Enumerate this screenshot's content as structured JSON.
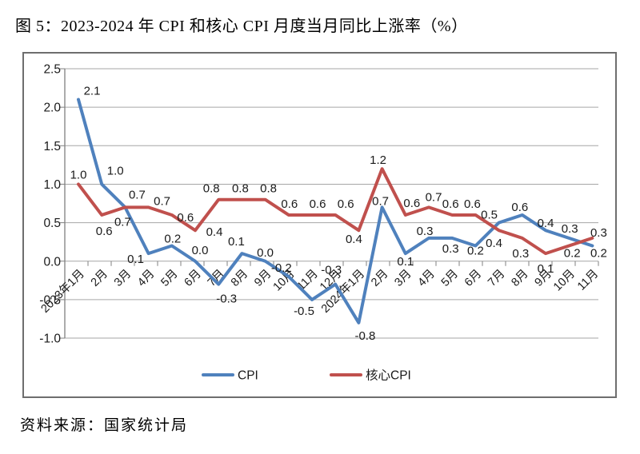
{
  "page": {
    "title": "图 5：2023-2024 年 CPI 和核心 CPI 月度当月同比上涨率（%）",
    "source_note": "资料来源：国家统计局"
  },
  "chart_data": {
    "type": "line",
    "title": "图 5：2023-2024 年 CPI 和核心 CPI 月度当月同比上涨率（%）",
    "xlabel": "",
    "ylabel": "",
    "categories": [
      "2023年1月",
      "2月",
      "3月",
      "4月",
      "5月",
      "6月",
      "7月",
      "8月",
      "9月",
      "10月",
      "11月",
      "12月",
      "2024年1月",
      "2月",
      "3月",
      "4月",
      "5月",
      "6月",
      "7月",
      "8月",
      "9月",
      "10月",
      "11月"
    ],
    "series": [
      {
        "name": "CPI",
        "color": "#4F81BD",
        "values": [
          2.1,
          1.0,
          0.7,
          0.1,
          0.2,
          0.0,
          -0.3,
          0.1,
          0.0,
          -0.2,
          -0.5,
          -0.3,
          -0.8,
          0.7,
          0.1,
          0.3,
          0.3,
          0.2,
          0.5,
          0.6,
          0.4,
          0.3,
          0.2
        ]
      },
      {
        "name": "核心CPI",
        "color": "#C0504D",
        "values": [
          1.0,
          0.6,
          0.7,
          0.7,
          0.6,
          0.4,
          0.8,
          0.8,
          0.8,
          0.6,
          0.6,
          0.6,
          0.4,
          1.2,
          0.6,
          0.7,
          0.6,
          0.6,
          0.4,
          0.3,
          0.1,
          0.2,
          0.3
        ]
      }
    ],
    "yticks": [
      2.5,
      2.0,
      1.5,
      1.0,
      0.5,
      0.0,
      -0.5,
      -1.0
    ],
    "ylim": [
      -1.0,
      2.5
    ],
    "grid": true,
    "data_labels": true,
    "legend_position": "bottom",
    "legend_labels": [
      "CPI",
      "核心CPI"
    ]
  },
  "colors": {
    "cpi_line": "#4F81BD",
    "core_cpi_line": "#C0504D",
    "gridline": "#A6A6A6",
    "axis": "#808080",
    "figure_border": "#6e6e6e",
    "label_text": "#1a1a1a"
  }
}
